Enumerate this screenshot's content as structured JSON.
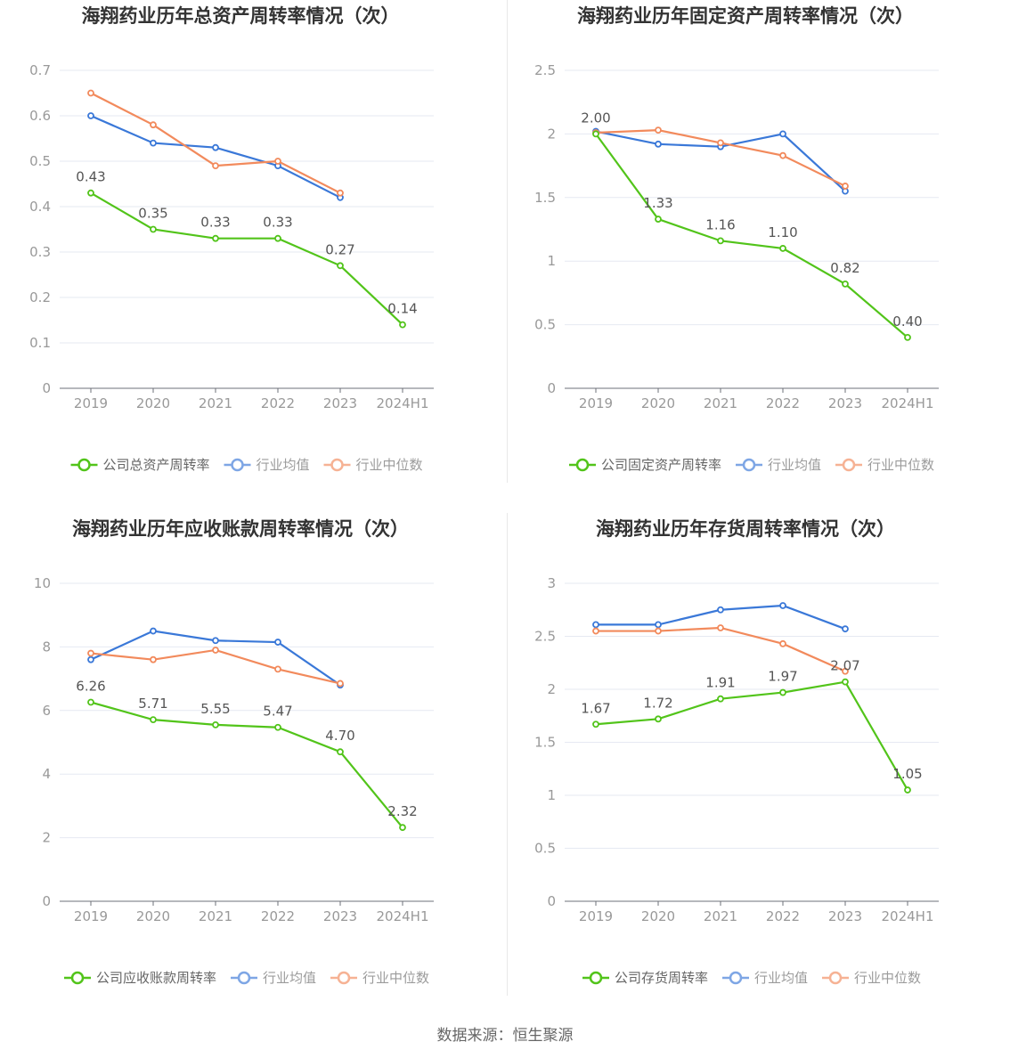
{
  "colors": {
    "company": "#52c41a",
    "industry_avg": "#3a78d8",
    "industry_median": "#f28a5c"
  },
  "source": "数据来源：恒生聚源",
  "chart_data": [
    {
      "type": "line",
      "title": "海翔药业历年总资产周转率情况（次）",
      "categories": [
        "2019",
        "2020",
        "2021",
        "2022",
        "2023",
        "2024H1"
      ],
      "ylim": [
        0,
        0.7
      ],
      "yticks": [
        0,
        0.1,
        0.2,
        0.3,
        0.4,
        0.5,
        0.6,
        0.7
      ],
      "ytick_labels": [
        "0",
        "0.1",
        "0.2",
        "0.3",
        "0.4",
        "0.5",
        "0.6",
        "0.7"
      ],
      "series": [
        {
          "name": "公司总资产周转率",
          "key": "company",
          "values": [
            0.43,
            0.35,
            0.33,
            0.33,
            0.27,
            0.14
          ],
          "labels": [
            "0.43",
            "0.35",
            "0.33",
            "0.33",
            "0.27",
            "0.14"
          ]
        },
        {
          "name": "行业均值",
          "key": "industry_avg",
          "values": [
            0.6,
            0.54,
            0.53,
            0.49,
            0.42,
            null
          ]
        },
        {
          "name": "行业中位数",
          "key": "industry_median",
          "values": [
            0.65,
            0.58,
            0.49,
            0.5,
            0.43,
            null
          ]
        }
      ],
      "grid": true,
      "legend": "bottom"
    },
    {
      "type": "line",
      "title": "海翔药业历年固定资产周转率情况（次）",
      "categories": [
        "2019",
        "2020",
        "2021",
        "2022",
        "2023",
        "2024H1"
      ],
      "ylim": [
        0,
        2.5
      ],
      "yticks": [
        0,
        0.5,
        1,
        1.5,
        2,
        2.5
      ],
      "ytick_labels": [
        "0",
        "0.5",
        "1",
        "1.5",
        "2",
        "2.5"
      ],
      "series": [
        {
          "name": "公司固定资产周转率",
          "key": "company",
          "values": [
            2.0,
            1.33,
            1.16,
            1.1,
            0.82,
            0.4
          ],
          "labels": [
            "2.00",
            "1.33",
            "1.16",
            "1.10",
            "0.82",
            "0.40"
          ]
        },
        {
          "name": "行业均值",
          "key": "industry_avg",
          "values": [
            2.02,
            1.92,
            1.9,
            2.0,
            1.55,
            null
          ]
        },
        {
          "name": "行业中位数",
          "key": "industry_median",
          "values": [
            2.01,
            2.03,
            1.93,
            1.83,
            1.59,
            null
          ]
        }
      ],
      "grid": true,
      "legend": "bottom"
    },
    {
      "type": "line",
      "title": "海翔药业历年应收账款周转率情况（次）",
      "categories": [
        "2019",
        "2020",
        "2021",
        "2022",
        "2023",
        "2024H1"
      ],
      "ylim": [
        0,
        10
      ],
      "yticks": [
        0,
        2,
        4,
        6,
        8,
        10
      ],
      "ytick_labels": [
        "0",
        "2",
        "4",
        "6",
        "8",
        "10"
      ],
      "series": [
        {
          "name": "公司应收账款周转率",
          "key": "company",
          "values": [
            6.26,
            5.71,
            5.55,
            5.47,
            4.7,
            2.32
          ],
          "labels": [
            "6.26",
            "5.71",
            "5.55",
            "5.47",
            "4.70",
            "2.32"
          ]
        },
        {
          "name": "行业均值",
          "key": "industry_avg",
          "values": [
            7.6,
            8.5,
            8.2,
            8.15,
            6.8,
            null
          ]
        },
        {
          "name": "行业中位数",
          "key": "industry_median",
          "values": [
            7.8,
            7.6,
            7.9,
            7.3,
            6.85,
            null
          ]
        }
      ],
      "grid": true,
      "legend": "bottom"
    },
    {
      "type": "line",
      "title": "海翔药业历年存货周转率情况（次）",
      "categories": [
        "2019",
        "2020",
        "2021",
        "2022",
        "2023",
        "2024H1"
      ],
      "ylim": [
        0,
        3
      ],
      "yticks": [
        0,
        0.5,
        1,
        1.5,
        2,
        2.5,
        3
      ],
      "ytick_labels": [
        "0",
        "0.5",
        "1",
        "1.5",
        "2",
        "2.5",
        "3"
      ],
      "series": [
        {
          "name": "公司存货周转率",
          "key": "company",
          "values": [
            1.67,
            1.72,
            1.91,
            1.97,
            2.07,
            1.05
          ],
          "labels": [
            "1.67",
            "1.72",
            "1.91",
            "1.97",
            "2.07",
            "1.05"
          ]
        },
        {
          "name": "行业均值",
          "key": "industry_avg",
          "values": [
            2.61,
            2.61,
            2.75,
            2.79,
            2.57,
            null
          ]
        },
        {
          "name": "行业中位数",
          "key": "industry_median",
          "values": [
            2.55,
            2.55,
            2.58,
            2.43,
            2.17,
            null
          ]
        }
      ],
      "grid": true,
      "legend": "bottom"
    }
  ]
}
